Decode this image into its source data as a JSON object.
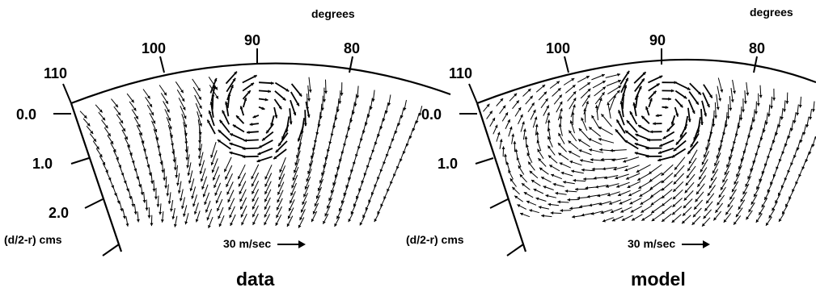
{
  "chart_data": [
    {
      "type": "vector-field",
      "title": "data",
      "angle_label": "degrees",
      "angle_ticks": [
        "110",
        "100",
        "90",
        "80"
      ],
      "depth_ticks": [
        "0.0",
        "1.0",
        "2.0"
      ],
      "depth_label": "(d/2-r) cms",
      "scale_label": "30 m/sec",
      "vortex": {
        "angle_deg": 90,
        "depth": 0.3
      },
      "angle_range_deg": [
        80,
        110
      ],
      "depth_range": [
        0.0,
        2.3
      ]
    },
    {
      "type": "vector-field",
      "title": "model",
      "angle_label": "degrees",
      "angle_ticks": [
        "110",
        "100",
        "90",
        "80"
      ],
      "depth_ticks": [
        "0.0",
        "1.0"
      ],
      "depth_label": "(d/2-r) cms",
      "scale_label": "30 m/sec",
      "vortex": {
        "angle_deg": 90,
        "depth": 0.3
      },
      "angle_range_deg": [
        80,
        110
      ],
      "depth_range": [
        0.0,
        2.3
      ]
    }
  ],
  "colors": {
    "ink": "#000000",
    "background": "#ffffff"
  },
  "icons": {
    "scale_arrow": "right-arrow-icon"
  }
}
